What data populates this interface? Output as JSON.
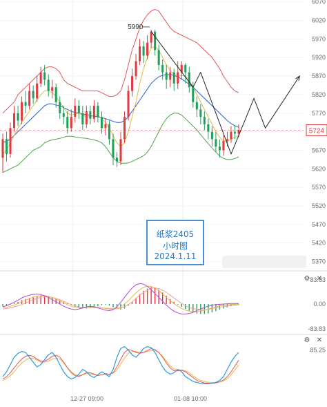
{
  "chart_data": {
    "type": "candlestick",
    "symbol_note": {
      "line1": "纸浆2405",
      "line2": "小时图",
      "line3": "2024.1.11"
    },
    "price_axis": {
      "ticks": [
        "6070",
        "6020",
        "5970",
        "5920",
        "5870",
        "5820",
        "5770",
        "5720",
        "5670",
        "5620",
        "5570",
        "5520",
        "5470",
        "5420",
        "5370"
      ],
      "range": [
        5345,
        6075
      ],
      "current_price_label": "5724"
    },
    "time_axis": {
      "labels": [
        "12-27 09:00",
        "01-08 10:00"
      ]
    },
    "peak_label": "5990",
    "candles": [
      [
        5650,
        5700,
        5610,
        5715
      ],
      [
        5700,
        5660,
        5640,
        5720
      ],
      [
        5660,
        5730,
        5650,
        5745
      ],
      [
        5730,
        5770,
        5720,
        5790
      ],
      [
        5770,
        5750,
        5735,
        5790
      ],
      [
        5750,
        5800,
        5740,
        5815
      ],
      [
        5800,
        5790,
        5770,
        5830
      ],
      [
        5790,
        5830,
        5780,
        5850
      ],
      [
        5830,
        5810,
        5795,
        5845
      ],
      [
        5810,
        5850,
        5800,
        5870
      ],
      [
        5850,
        5880,
        5840,
        5895
      ],
      [
        5880,
        5860,
        5845,
        5900
      ],
      [
        5860,
        5830,
        5815,
        5875
      ],
      [
        5830,
        5840,
        5810,
        5860
      ],
      [
        5840,
        5800,
        5785,
        5850
      ],
      [
        5800,
        5770,
        5755,
        5815
      ],
      [
        5770,
        5760,
        5740,
        5790
      ],
      [
        5760,
        5730,
        5715,
        5775
      ],
      [
        5730,
        5760,
        5720,
        5780
      ],
      [
        5760,
        5790,
        5745,
        5810
      ],
      [
        5790,
        5770,
        5755,
        5805
      ],
      [
        5770,
        5740,
        5725,
        5790
      ],
      [
        5740,
        5775,
        5730,
        5790
      ],
      [
        5775,
        5755,
        5740,
        5790
      ],
      [
        5755,
        5790,
        5745,
        5805
      ],
      [
        5790,
        5760,
        5745,
        5800
      ],
      [
        5760,
        5730,
        5715,
        5775
      ],
      [
        5730,
        5740,
        5710,
        5755
      ],
      [
        5740,
        5700,
        5685,
        5750
      ],
      [
        5700,
        5650,
        5630,
        5715
      ],
      [
        5650,
        5640,
        5625,
        5665
      ],
      [
        5640,
        5700,
        5630,
        5720
      ],
      [
        5700,
        5760,
        5690,
        5775
      ],
      [
        5760,
        5830,
        5750,
        5845
      ],
      [
        5830,
        5870,
        5815,
        5890
      ],
      [
        5870,
        5910,
        5860,
        5930
      ],
      [
        5910,
        5950,
        5900,
        5970
      ],
      [
        5950,
        5925,
        5905,
        5965
      ],
      [
        5925,
        5960,
        5915,
        5980
      ],
      [
        5960,
        5990,
        5945,
        5995
      ],
      [
        5990,
        5940,
        5925,
        5995
      ],
      [
        5940,
        5900,
        5885,
        5955
      ],
      [
        5900,
        5880,
        5860,
        5915
      ],
      [
        5880,
        5860,
        5835,
        5900
      ],
      [
        5860,
        5880,
        5840,
        5895
      ],
      [
        5880,
        5850,
        5830,
        5890
      ],
      [
        5850,
        5880,
        5835,
        5910
      ],
      [
        5880,
        5900,
        5860,
        5910
      ],
      [
        5900,
        5880,
        5850,
        5905
      ],
      [
        5880,
        5840,
        5825,
        5895
      ],
      [
        5840,
        5800,
        5785,
        5855
      ],
      [
        5800,
        5780,
        5760,
        5815
      ],
      [
        5780,
        5760,
        5740,
        5795
      ],
      [
        5760,
        5740,
        5725,
        5775
      ],
      [
        5740,
        5720,
        5700,
        5755
      ],
      [
        5720,
        5700,
        5680,
        5735
      ],
      [
        5700,
        5680,
        5665,
        5720
      ],
      [
        5680,
        5670,
        5650,
        5700
      ],
      [
        5670,
        5695,
        5655,
        5710
      ],
      [
        5695,
        5700,
        5680,
        5720
      ],
      [
        5700,
        5720,
        5690,
        5735
      ],
      [
        5720,
        5715,
        5700,
        5735
      ],
      [
        5715,
        5725,
        5705,
        5740
      ]
    ],
    "overlays": {
      "upper_band": [
        5770,
        5780,
        5790,
        5800,
        5820,
        5830,
        5840,
        5850,
        5860,
        5870,
        5880,
        5890,
        5895,
        5895,
        5890,
        5880,
        5860,
        5850,
        5845,
        5840,
        5835,
        5830,
        5830,
        5830,
        5830,
        5830,
        5825,
        5820,
        5815,
        5815,
        5820,
        5830,
        5860,
        5900,
        5940,
        5970,
        6000,
        6020,
        6035,
        6045,
        6050,
        6045,
        6030,
        6015,
        6000,
        5990,
        5985,
        5980,
        5975,
        5970,
        5965,
        5960,
        5950,
        5940,
        5930,
        5920,
        5905,
        5890,
        5870,
        5855,
        5840,
        5830,
        5825
      ],
      "middle_band": [
        5690,
        5695,
        5700,
        5710,
        5720,
        5730,
        5740,
        5750,
        5760,
        5770,
        5780,
        5790,
        5795,
        5795,
        5792,
        5790,
        5785,
        5780,
        5775,
        5772,
        5770,
        5768,
        5766,
        5764,
        5762,
        5760,
        5758,
        5755,
        5752,
        5748,
        5745,
        5745,
        5750,
        5760,
        5775,
        5790,
        5805,
        5820,
        5835,
        5850,
        5860,
        5868,
        5872,
        5874,
        5874,
        5872,
        5868,
        5862,
        5855,
        5848,
        5840,
        5830,
        5820,
        5810,
        5800,
        5790,
        5780,
        5770,
        5760,
        5750,
        5742,
        5736,
        5732
      ],
      "lower_band": [
        5610,
        5615,
        5620,
        5625,
        5630,
        5640,
        5650,
        5660,
        5670,
        5675,
        5680,
        5690,
        5695,
        5698,
        5700,
        5702,
        5705,
        5708,
        5708,
        5706,
        5704,
        5703,
        5702,
        5700,
        5698,
        5695,
        5690,
        5680,
        5665,
        5650,
        5640,
        5635,
        5635,
        5636,
        5640,
        5645,
        5650,
        5655,
        5665,
        5680,
        5700,
        5720,
        5740,
        5755,
        5765,
        5770,
        5770,
        5765,
        5755,
        5745,
        5735,
        5725,
        5712,
        5700,
        5688,
        5676,
        5665,
        5655,
        5648,
        5645,
        5645,
        5648,
        5652
      ],
      "ma_fast": [
        5660,
        5670,
        5690,
        5710,
        5730,
        5745,
        5760,
        5775,
        5790,
        5805,
        5820,
        5830,
        5830,
        5825,
        5815,
        5800,
        5785,
        5770,
        5765,
        5768,
        5770,
        5765,
        5760,
        5760,
        5765,
        5765,
        5755,
        5745,
        5730,
        5710,
        5690,
        5680,
        5690,
        5720,
        5760,
        5800,
        5850,
        5890,
        5920,
        5945,
        5950,
        5940,
        5920,
        5900,
        5885,
        5875,
        5870,
        5872,
        5870,
        5860,
        5840,
        5820,
        5800,
        5780,
        5760,
        5740,
        5720,
        5705,
        5695,
        5695,
        5700,
        5705,
        5710
      ]
    },
    "macd": {
      "ylabels": [
        "83.83",
        "0.00",
        "-83.83"
      ],
      "range": [
        -90,
        90
      ],
      "hist": [
        -8,
        -6,
        -2,
        3,
        8,
        14,
        18,
        22,
        26,
        28,
        30,
        30,
        28,
        25,
        20,
        14,
        8,
        2,
        -4,
        -10,
        -14,
        -16,
        -16,
        -15,
        -12,
        -8,
        -4,
        -2,
        -6,
        -12,
        -18,
        -20,
        -16,
        -6,
        8,
        22,
        36,
        48,
        56,
        62,
        60,
        52,
        42,
        30,
        18,
        8,
        -2,
        -10,
        -18,
        -24,
        -30,
        -34,
        -36,
        -36,
        -34,
        -30,
        -26,
        -20,
        -16,
        -12,
        -8,
        -4,
        -2
      ],
      "dif": [
        -10,
        -6,
        0,
        6,
        14,
        22,
        28,
        32,
        35,
        36,
        34,
        30,
        24,
        16,
        8,
        0,
        -8,
        -14,
        -18,
        -20,
        -18,
        -14,
        -10,
        -8,
        -10,
        -14,
        -18,
        -22,
        -24,
        -20,
        -10,
        6,
        24,
        42,
        58,
        70,
        74,
        72,
        64,
        52,
        38,
        24,
        10,
        -4,
        -16,
        -26,
        -32,
        -36,
        -36,
        -34,
        -30,
        -24,
        -18,
        -12,
        -8,
        -4,
        -2,
        -1,
        0,
        1,
        2,
        2,
        2
      ],
      "dea": [
        -14,
        -12,
        -8,
        -4,
        2,
        8,
        14,
        20,
        25,
        28,
        30,
        30,
        28,
        24,
        18,
        12,
        5,
        -2,
        -8,
        -12,
        -14,
        -14,
        -13,
        -12,
        -12,
        -12,
        -14,
        -16,
        -18,
        -18,
        -16,
        -10,
        0,
        12,
        26,
        40,
        52,
        60,
        64,
        64,
        58,
        48,
        36,
        24,
        12,
        2,
        -8,
        -16,
        -22,
        -26,
        -28,
        -28,
        -26,
        -22,
        -18,
        -14,
        -10,
        -7,
        -5,
        -3,
        -2,
        -1,
        0
      ],
      "slow": [
        -18,
        -16,
        -14,
        -10,
        -6,
        -2,
        4,
        10,
        16,
        20,
        24,
        26,
        26,
        24,
        20,
        16,
        10,
        4,
        -2,
        -6,
        -10,
        -12,
        -13,
        -13,
        -13,
        -13,
        -14,
        -15,
        -16,
        -17,
        -17,
        -15,
        -10,
        -2,
        8,
        20,
        32,
        42,
        50,
        56,
        58,
        56,
        50,
        42,
        32,
        22,
        12,
        2,
        -6,
        -12,
        -16,
        -19,
        -20,
        -20,
        -19,
        -17,
        -14,
        -11,
        -9,
        -7,
        -5,
        -4,
        -3
      ]
    },
    "oscillator": {
      "ylabel": "85.25",
      "range": [
        0,
        100
      ],
      "k": [
        30,
        40,
        55,
        70,
        78,
        82,
        80,
        70,
        60,
        50,
        55,
        65,
        75,
        80,
        70,
        55,
        40,
        30,
        25,
        28,
        35,
        45,
        40,
        32,
        28,
        34,
        40,
        35,
        30,
        45,
        70,
        88,
        92,
        85,
        75,
        70,
        78,
        88,
        92,
        90,
        80,
        65,
        50,
        40,
        35,
        38,
        45,
        40,
        30,
        25,
        20,
        18,
        16,
        15,
        15,
        16,
        18,
        22,
        30,
        45,
        60,
        72,
        80
      ],
      "d": [
        25,
        30,
        38,
        48,
        58,
        66,
        72,
        74,
        72,
        66,
        62,
        62,
        66,
        72,
        74,
        70,
        60,
        48,
        38,
        32,
        30,
        34,
        38,
        38,
        35,
        32,
        34,
        36,
        35,
        38,
        50,
        66,
        80,
        86,
        84,
        80,
        78,
        80,
        84,
        88,
        86,
        80,
        70,
        58,
        48,
        42,
        42,
        43,
        40,
        34,
        28,
        22,
        19,
        17,
        16,
        16,
        17,
        19,
        23,
        30,
        40,
        52,
        64
      ],
      "j": [
        22,
        26,
        32,
        40,
        50,
        58,
        64,
        68,
        68,
        64,
        60,
        60,
        62,
        66,
        68,
        66,
        58,
        48,
        40,
        34,
        32,
        34,
        36,
        36,
        34,
        33,
        34,
        35,
        35,
        37,
        44,
        56,
        68,
        78,
        82,
        82,
        80,
        80,
        82,
        84,
        84,
        80,
        72,
        62,
        52,
        46,
        44,
        44,
        42,
        38,
        32,
        26,
        22,
        20,
        18,
        18,
        18,
        19,
        21,
        26,
        34,
        44,
        54
      ]
    }
  },
  "panel_icons": {
    "settings": "gear-icon",
    "close": "close-icon"
  },
  "colors": {
    "up": "#e0393e",
    "down": "#1fa05a",
    "upper_band": "#e2555a",
    "middle_band": "#3c6fd2",
    "lower_band": "#4aa64a",
    "ma_fast": "#e6b84a",
    "price_tag": "#e0393e",
    "annotation": "#2a78c4"
  }
}
